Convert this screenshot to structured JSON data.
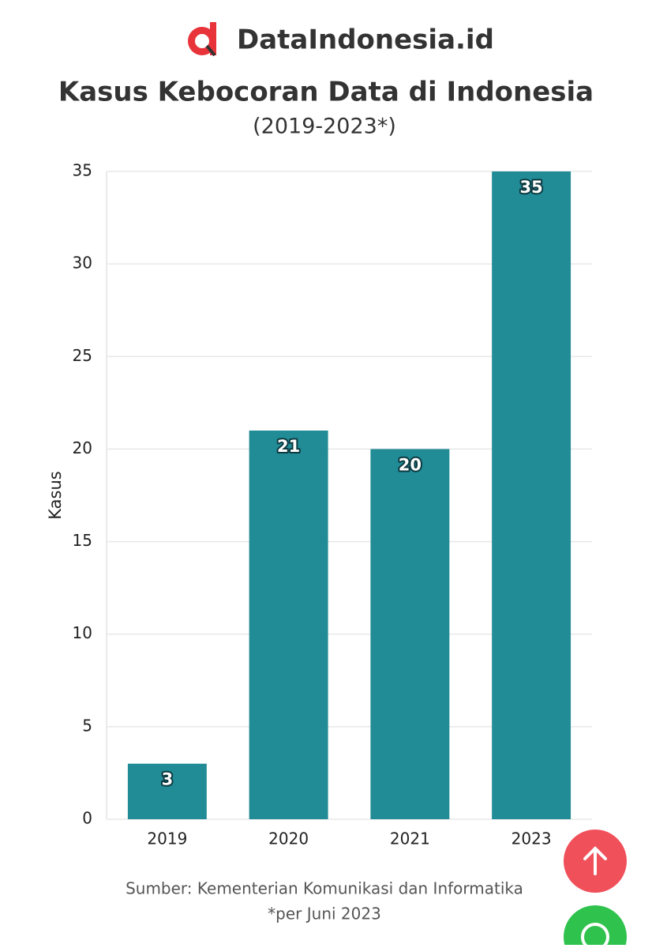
{
  "header": {
    "brand": "DataIndonesia.id"
  },
  "chart_data": {
    "type": "bar",
    "title": "Kasus Kebocoran Data di Indonesia",
    "subtitle": "(2019-2023*)",
    "y_label": "Kasus",
    "categories": [
      "2019",
      "2020",
      "2021",
      "2023"
    ],
    "values": [
      3,
      21,
      20,
      35
    ],
    "color": "#218b96",
    "ylim": [
      0,
      35
    ],
    "yticks": [
      0,
      5,
      10,
      15,
      20,
      25,
      30,
      35
    ],
    "grid": true,
    "source": "Sumber: Kementerian Komunikasi dan Informatika",
    "note": "*per Juni 2023"
  }
}
